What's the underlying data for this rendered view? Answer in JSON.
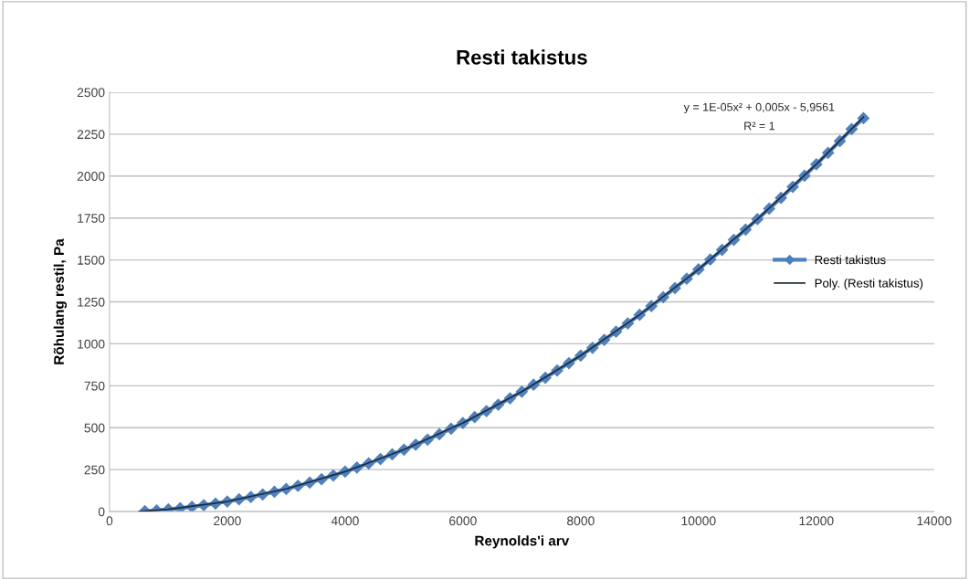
{
  "chart_data": {
    "type": "line",
    "title": "Resti takistus",
    "xlabel": "Reynolds'i arv",
    "ylabel": "Rõhulang restil, Pa",
    "series": [
      {
        "name": "Resti takistus",
        "color": "#4f81bd",
        "marker": "diamond",
        "x": [
          600,
          800,
          1000,
          1200,
          1400,
          1600,
          1800,
          2000,
          2200,
          2400,
          2600,
          2800,
          3000,
          3200,
          3400,
          3600,
          3800,
          4000,
          4200,
          4400,
          4600,
          4800,
          5000,
          5200,
          5400,
          5600,
          5800,
          6000,
          6200,
          6400,
          6600,
          6800,
          7000,
          7200,
          7400,
          7600,
          7800,
          8000,
          8200,
          8400,
          8600,
          8800,
          9000,
          9200,
          9400,
          9600,
          9800,
          10000,
          10200,
          10400,
          10600,
          10800,
          11000,
          11200,
          11400,
          11600,
          11800,
          12000,
          12200,
          12400,
          12600,
          12800
        ],
        "values": [
          2,
          7,
          13,
          20,
          28,
          38,
          48,
          60,
          73,
          87,
          102,
          118,
          135,
          153,
          173,
          193,
          215,
          238,
          262,
          287,
          313,
          341,
          369,
          399,
          429,
          461,
          494,
          528,
          563,
          599,
          637,
          675,
          715,
          756,
          798,
          841,
          885,
          930,
          976,
          1024,
          1072,
          1122,
          1173,
          1225,
          1278,
          1332,
          1388,
          1444,
          1502,
          1560,
          1620,
          1681,
          1743,
          1806,
          1870,
          1936,
          2002,
          2070,
          2139,
          2209,
          2280,
          2345
        ]
      },
      {
        "name": "Poly. (Resti takistus)",
        "color": "#1f2a3a",
        "marker": "none",
        "x": [
          500,
          1000,
          2000,
          3000,
          4000,
          5000,
          6000,
          7000,
          8000,
          9000,
          10000,
          11000,
          12000,
          12800
        ],
        "values": [
          0,
          13,
          60,
          135,
          238,
          369,
          528,
          715,
          930,
          1173,
          1444,
          1743,
          2070,
          2352
        ]
      }
    ],
    "xlim": [
      0,
      14000
    ],
    "xticks": [
      0,
      2000,
      4000,
      6000,
      8000,
      10000,
      12000,
      14000
    ],
    "ylim": [
      0,
      2500
    ],
    "yticks": [
      0,
      250,
      500,
      750,
      1000,
      1250,
      1500,
      1750,
      2000,
      2250,
      2500
    ],
    "grid": "y",
    "legend": "right",
    "annotations": [
      "y = 1E-05x² + 0,005x - 5,9561",
      "R² = 1"
    ]
  }
}
